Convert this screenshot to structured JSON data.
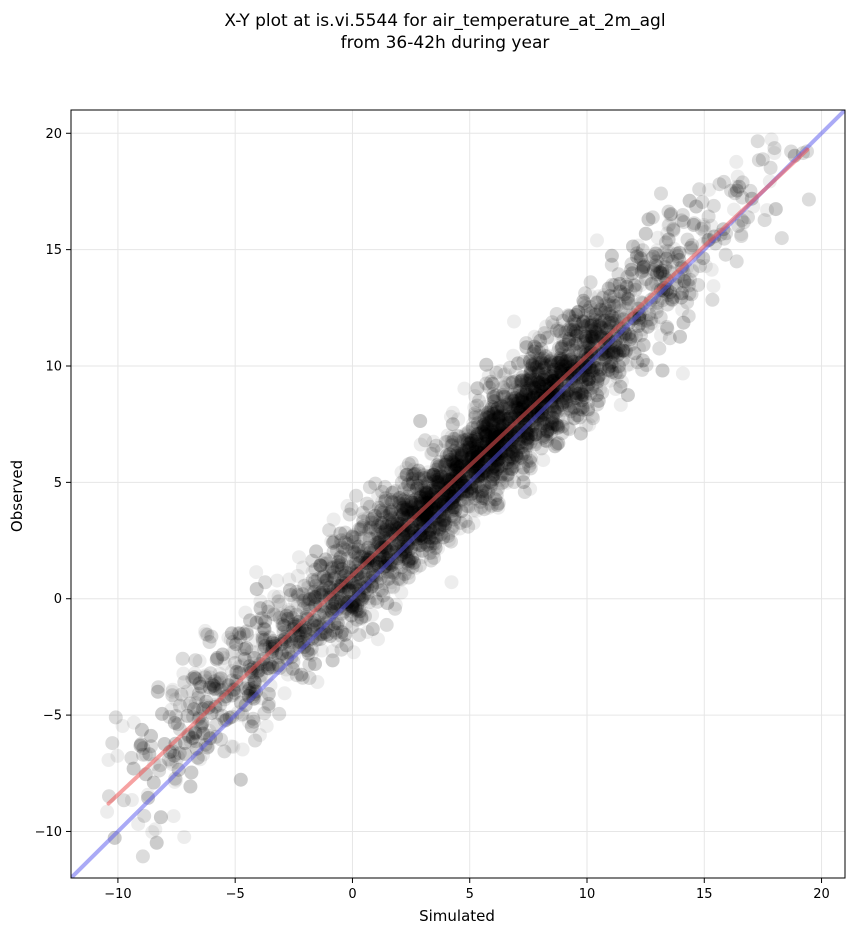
{
  "chart_data": {
    "type": "scatter",
    "title": [
      "X-Y plot at is.vi.5544 for air_temperature_at_2m_agl",
      "from 36-42h during year"
    ],
    "xlabel": "Simulated",
    "ylabel": "Observed",
    "xlim": [
      -12,
      21
    ],
    "ylim": [
      -12,
      21
    ],
    "xticks": [
      -10,
      -5,
      0,
      5,
      10,
      15,
      20
    ],
    "yticks": [
      -10,
      -5,
      0,
      5,
      10,
      15,
      20
    ],
    "xtick_labels": [
      "−10",
      "−5",
      "0",
      "5",
      "10",
      "15",
      "20"
    ],
    "ytick_labels": [
      "−10",
      "−5",
      "0",
      "5",
      "10",
      "15",
      "20"
    ],
    "grid": true,
    "scatter": {
      "color": "#000000",
      "opacity": 0.07,
      "point_count_approx": 6000,
      "distribution": "dense linear cloud from about (-10, -7.5) to (19.5, 19), densest around (2..10, 2..11)"
    },
    "fit_line": {
      "color": "#ee5555",
      "opacity": 0.55,
      "x": [
        -10.4,
        19.4
      ],
      "y": [
        -8.8,
        19.3
      ]
    },
    "identity_line": {
      "color": "#5555ee",
      "opacity": 0.5,
      "x": [
        -12,
        21
      ],
      "y": [
        -12,
        21
      ]
    }
  }
}
